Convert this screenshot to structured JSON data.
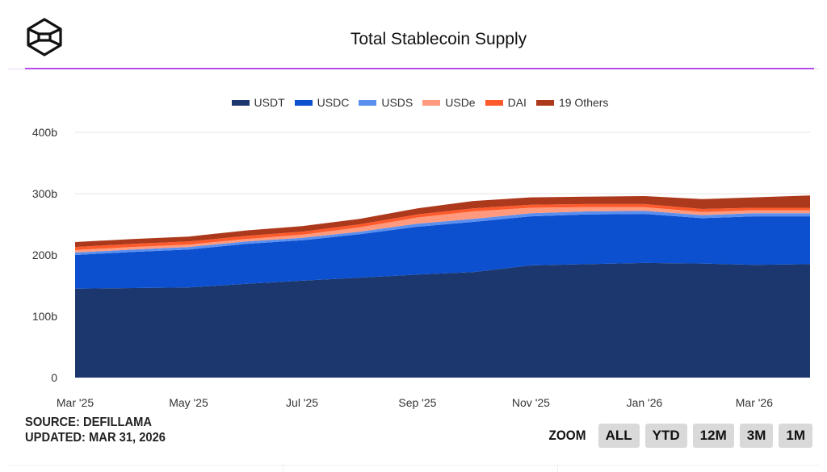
{
  "header": {
    "title": "Total Stablecoin Supply"
  },
  "footer": {
    "source": "SOURCE: DEFILLAMA",
    "updated": "UPDATED: MAR 31, 2026"
  },
  "zoom": {
    "label": "ZOOM",
    "buttons": [
      "ALL",
      "YTD",
      "12M",
      "3M",
      "1M"
    ]
  },
  "chart_data": {
    "type": "area",
    "stacked": true,
    "title": "Total Stablecoin Supply",
    "xlabel": "",
    "ylabel": "",
    "ylim": [
      0,
      400
    ],
    "yticks": [
      0,
      100,
      200,
      300,
      400
    ],
    "ytick_labels": [
      "0",
      "100b",
      "200b",
      "300b",
      "400b"
    ],
    "xticks": [
      "2025-03-01",
      "2025-05-01",
      "2025-07-01",
      "2025-09-01",
      "2025-11-01",
      "2026-01-01",
      "2026-03-01"
    ],
    "xtick_labels": [
      "Mar '25",
      "May '25",
      "Jul '25",
      "Sep '25",
      "Nov '25",
      "Jan '26",
      "Mar '26"
    ],
    "xlim": [
      "2025-03-01",
      "2026-03-31"
    ],
    "grid": true,
    "legend_position": "top",
    "x": [
      "2025-03-01",
      "2025-04-01",
      "2025-05-01",
      "2025-06-01",
      "2025-07-01",
      "2025-08-01",
      "2025-09-01",
      "2025-10-01",
      "2025-11-01",
      "2025-12-01",
      "2026-01-01",
      "2026-02-01",
      "2026-03-01",
      "2026-03-31"
    ],
    "series": [
      {
        "name": "USDT",
        "color": "#1b376e",
        "values": [
          145,
          146,
          147,
          153,
          158,
          163,
          168,
          172,
          183,
          185,
          187,
          186,
          184,
          185
        ]
      },
      {
        "name": "USDC",
        "color": "#0c50d0",
        "values": [
          55,
          59,
          62,
          65,
          66,
          71,
          78,
          82,
          80,
          81,
          80,
          74,
          79,
          78
        ]
      },
      {
        "name": "USDS",
        "color": "#5b8fef",
        "values": [
          4,
          4,
          4,
          4,
          4,
          4,
          5,
          5,
          5,
          5,
          5,
          5,
          5,
          5
        ]
      },
      {
        "name": "USDe",
        "color": "#ff9a7e",
        "values": [
          4,
          4,
          4,
          4,
          5,
          7,
          10,
          12,
          9,
          7,
          6,
          5,
          5,
          5
        ]
      },
      {
        "name": "DAI",
        "color": "#ff5a2b",
        "values": [
          5,
          5,
          5,
          5,
          5,
          5,
          5,
          5,
          5,
          5,
          5,
          5,
          4,
          4
        ]
      },
      {
        "name": "19 Others",
        "color": "#ad391d",
        "values": [
          8,
          8,
          8,
          9,
          9,
          9,
          10,
          12,
          12,
          12,
          13,
          16,
          17,
          20
        ]
      }
    ]
  }
}
